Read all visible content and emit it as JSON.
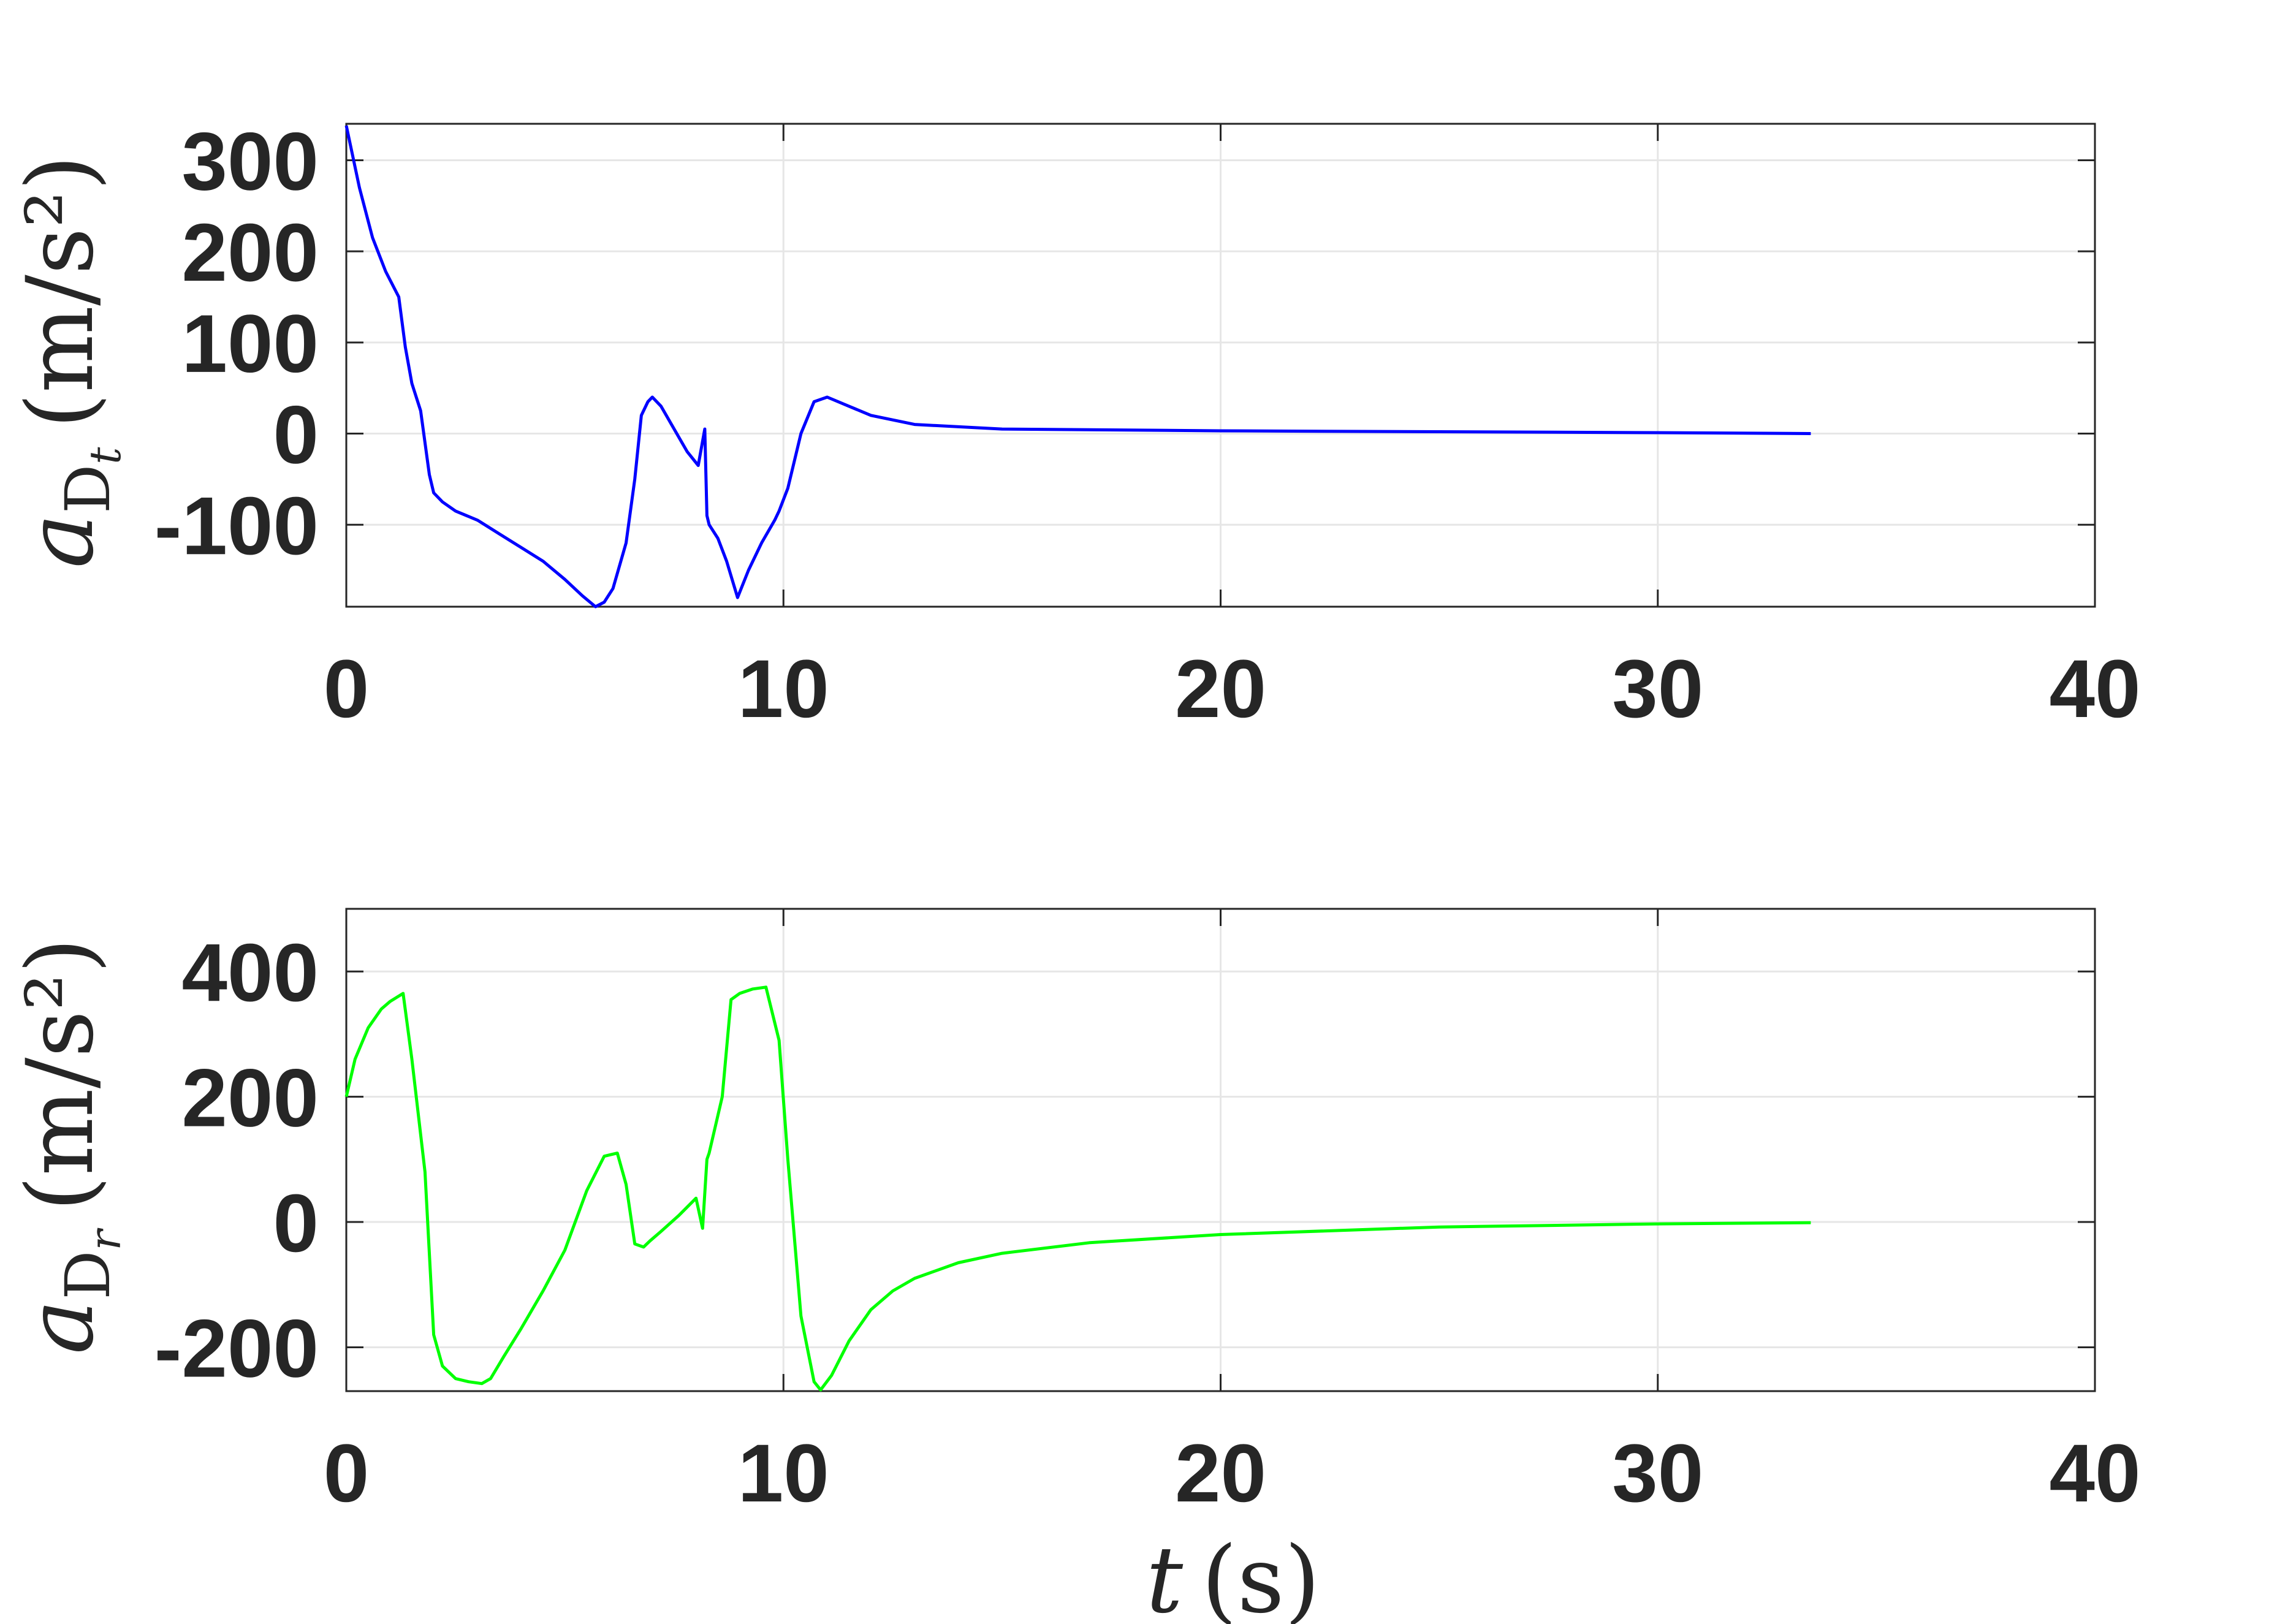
{
  "chart_data": [
    {
      "type": "line",
      "title": "",
      "xlabel": "",
      "ylabel": "a_{D_t} (m/s^2)",
      "ylabel_parts": {
        "symbol": "a",
        "subscript": "D",
        "subsubscript": "t",
        "unit": "(m/s²)"
      },
      "xlim": [
        0,
        40
      ],
      "ylim": [
        -190,
        340
      ],
      "x_ticks": [
        "0",
        "10",
        "20",
        "30",
        "40"
      ],
      "y_ticks": [
        "-100",
        "0",
        "100",
        "200",
        "300"
      ],
      "grid": true,
      "color": "#0000ff",
      "series": [
        {
          "x": [
            0,
            0.3,
            0.6,
            0.9,
            1.2,
            1.35,
            1.5,
            1.7,
            1.9,
            2.0,
            2.2,
            2.5,
            3.0,
            3.5,
            4.0,
            4.5,
            5.0,
            5.4,
            5.7,
            5.9,
            6.1,
            6.4,
            6.6,
            6.75,
            6.9,
            7.0,
            7.2,
            7.5,
            7.8,
            8.05,
            8.2,
            8.25,
            8.3,
            8.5,
            8.7,
            8.95,
            9.2,
            9.5,
            9.8,
            9.9,
            10.1,
            10.4,
            10.7,
            11.0,
            11.5,
            12.0,
            13.0,
            15.0,
            20.0,
            25.0,
            30.0,
            33.5
          ],
          "y": [
            338,
            270,
            215,
            178,
            150,
            95,
            55,
            25,
            -45,
            -65,
            -75,
            -85,
            -95,
            -110,
            -125,
            -140,
            -160,
            -178,
            -190,
            -185,
            -170,
            -120,
            -50,
            20,
            35,
            40,
            30,
            5,
            -20,
            -35,
            5,
            -90,
            -100,
            -115,
            -140,
            -180,
            -150,
            -120,
            -95,
            -85,
            -60,
            0,
            35,
            40,
            30,
            20,
            10,
            5,
            3,
            2,
            1,
            0
          ]
        }
      ]
    },
    {
      "type": "line",
      "title": "",
      "xlabel": "t (s)",
      "xlabel_parts": {
        "symbol": "t",
        "unit": "(s)"
      },
      "ylabel": "a_{D_r} (m/s^2)",
      "ylabel_parts": {
        "symbol": "a",
        "subscript": "D",
        "subsubscript": "r",
        "unit": "(m/s²)"
      },
      "xlim": [
        0,
        40
      ],
      "ylim": [
        -270,
        500
      ],
      "x_ticks": [
        "0",
        "10",
        "20",
        "30",
        "40"
      ],
      "y_ticks": [
        "-200",
        "0",
        "200",
        "400"
      ],
      "grid": true,
      "color": "#00ff00",
      "series": [
        {
          "x": [
            0,
            0.2,
            0.5,
            0.8,
            1.0,
            1.3,
            1.5,
            1.8,
            2.0,
            2.2,
            2.5,
            2.8,
            3.1,
            3.3,
            3.6,
            4.0,
            4.5,
            5.0,
            5.5,
            5.9,
            6.2,
            6.4,
            6.6,
            6.8,
            6.95,
            7.2,
            7.6,
            8.0,
            8.15,
            8.25,
            8.3,
            8.6,
            8.8,
            9.0,
            9.3,
            9.6,
            9.9,
            10.1,
            10.4,
            10.7,
            10.85,
            11.1,
            11.5,
            12.0,
            12.5,
            13.0,
            14.0,
            15.0,
            17.0,
            20.0,
            25.0,
            30.0,
            33.5
          ],
          "y": [
            200,
            260,
            310,
            340,
            352,
            365,
            260,
            80,
            -180,
            -230,
            -250,
            -255,
            -258,
            -250,
            -215,
            -170,
            -110,
            -45,
            50,
            105,
            110,
            60,
            -35,
            -40,
            -30,
            -15,
            10,
            38,
            -10,
            100,
            110,
            200,
            355,
            365,
            372,
            375,
            290,
            100,
            -150,
            -255,
            -268,
            -245,
            -190,
            -140,
            -110,
            -90,
            -65,
            -50,
            -33,
            -20,
            -8,
            -3,
            -1
          ]
        }
      ]
    }
  ]
}
